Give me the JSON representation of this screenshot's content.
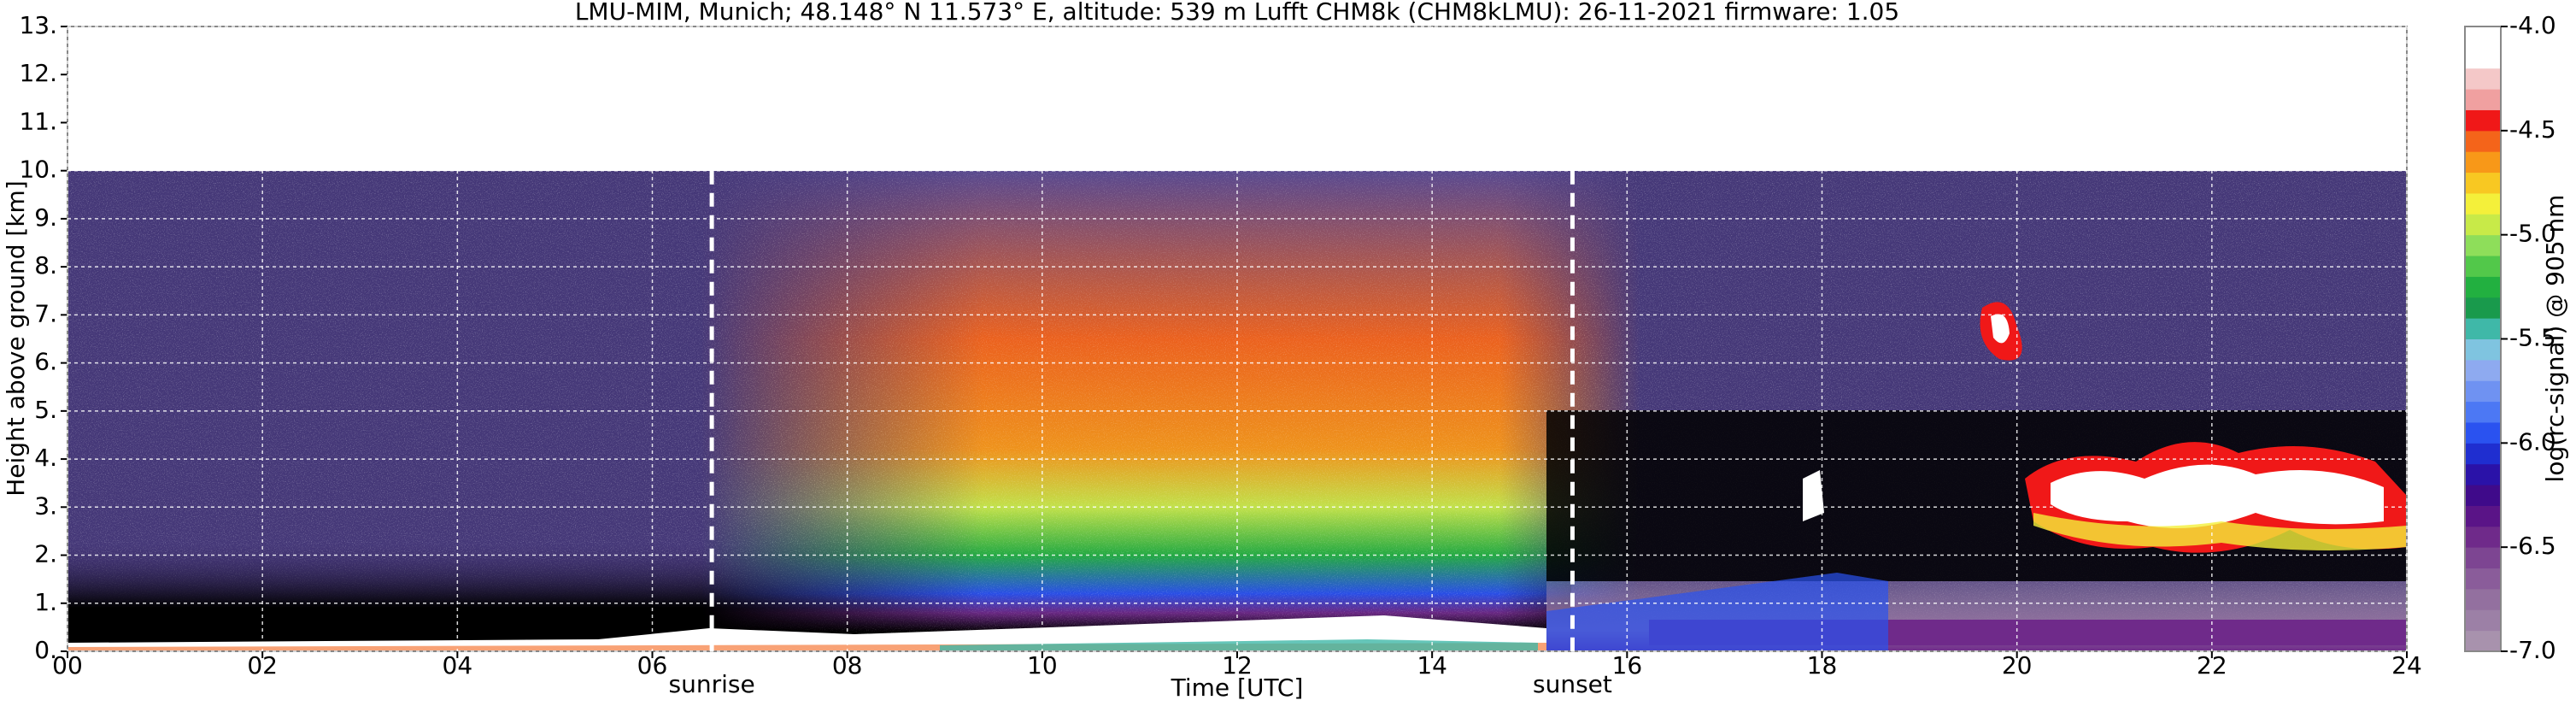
{
  "chart_data": {
    "type": "heatmap",
    "title": "LMU-MIM, Munich; 48.148° N 11.573° E, altitude: 539 m    Lufft CHM8k (CHM8kLMU): 26-11-2021    firmware: 1.05",
    "xlabel": "Time [UTC]",
    "ylabel": "Height above ground [km]",
    "xlim": [
      0,
      24
    ],
    "xticks": [
      {
        "value": 0,
        "label": "00"
      },
      {
        "value": 2,
        "label": "02"
      },
      {
        "value": 4,
        "label": "04"
      },
      {
        "value": 6,
        "label": "06"
      },
      {
        "value": 8,
        "label": "08"
      },
      10,
      12,
      14,
      16,
      18,
      20,
      22,
      24
    ],
    "ylim": [
      0,
      13
    ],
    "yticks": [
      {
        "value": 0,
        "label": "0."
      },
      {
        "value": 1,
        "label": "1."
      },
      {
        "value": 2,
        "label": "2."
      },
      {
        "value": 3,
        "label": "3."
      },
      {
        "value": 4,
        "label": "4."
      },
      {
        "value": 5,
        "label": "5."
      },
      {
        "value": 6,
        "label": "6."
      },
      {
        "value": 7,
        "label": "7."
      },
      {
        "value": 8,
        "label": "8."
      },
      {
        "value": 9,
        "label": "9."
      },
      {
        "value": 10,
        "label": "10."
      },
      {
        "value": 11,
        "label": "11."
      },
      {
        "value": 12,
        "label": "12."
      },
      {
        "value": 13,
        "label": "13."
      }
    ],
    "grid": true,
    "annotations": [
      {
        "text": "sunrise",
        "x": 6.61
      },
      {
        "text": "sunset",
        "x": 15.44
      }
    ],
    "colorbar": {
      "label": "log(rc-signal) @ 905 nm",
      "lim": [
        -7,
        -4
      ],
      "ticks": [
        {
          "value": -4,
          "label": "-4.0"
        },
        {
          "value": -4.5,
          "label": "-4.5"
        },
        {
          "value": -5,
          "label": "-5.0"
        },
        {
          "value": -5.5,
          "label": "-5.5"
        },
        {
          "value": -6,
          "label": "-6.0"
        },
        {
          "value": -6.5,
          "label": "-6.5"
        },
        {
          "value": -7,
          "label": "-7.0"
        }
      ],
      "colors": [
        "#a892ad",
        "#9c80a6",
        "#93709f",
        "#8a5c9a",
        "#7d4592",
        "#6f2a8a",
        "#5a1487",
        "#3f0a8a",
        "#2a12a8",
        "#1f2ed0",
        "#2a52f0",
        "#4c78f4",
        "#6f92f2",
        "#8eaaf0",
        "#7fc4e0",
        "#3fb8a8",
        "#199a4c",
        "#22b040",
        "#52c84a",
        "#8ede5a",
        "#c8ea48",
        "#f4f03a",
        "#f8c822",
        "#f89818",
        "#f4641a",
        "#f01818",
        "#f0a0a0",
        "#f4c8c8",
        "#ffffff",
        "#ffffff"
      ]
    }
  }
}
